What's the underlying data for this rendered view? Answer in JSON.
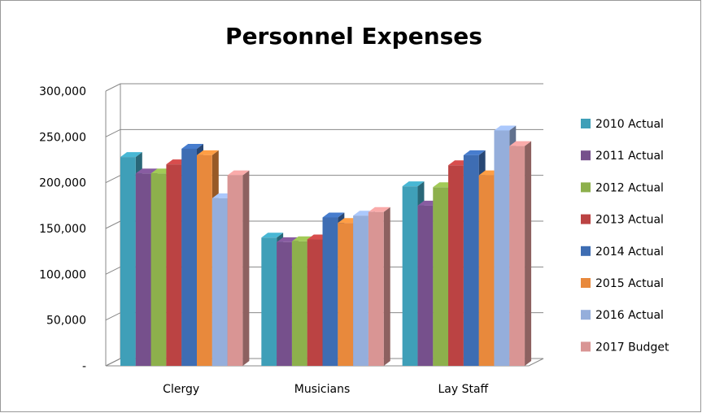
{
  "chart_data": {
    "type": "bar",
    "title": "Personnel Expenses",
    "categories": [
      "Clergy",
      "Musicians",
      "Lay Staff"
    ],
    "series": [
      {
        "name": "2010 Actual",
        "color": "#3f9fb8",
        "values": [
          228000,
          140000,
          196000
        ]
      },
      {
        "name": "2011 Actual",
        "color": "#76508c",
        "values": [
          210000,
          135000,
          175000
        ]
      },
      {
        "name": "2012 Actual",
        "color": "#8db04c",
        "values": [
          210000,
          136000,
          195000
        ]
      },
      {
        "name": "2013 Actual",
        "color": "#bb4343",
        "values": [
          220000,
          138000,
          219000
        ]
      },
      {
        "name": "2014 Actual",
        "color": "#3e6db3",
        "values": [
          237000,
          162000,
          230000
        ]
      },
      {
        "name": "2015 Actual",
        "color": "#e8893c",
        "values": [
          230000,
          156000,
          208000
        ]
      },
      {
        "name": "2016 Actual",
        "color": "#95aedb",
        "values": [
          183000,
          164000,
          257000
        ]
      },
      {
        "name": "2017 Budget",
        "color": "#d99594",
        "values": [
          208000,
          168000,
          240000
        ]
      }
    ],
    "ylim": [
      0,
      300000
    ],
    "yticks": [
      {
        "value": 0,
        "label": "-"
      },
      {
        "value": 50000,
        "label": "50,000"
      },
      {
        "value": 100000,
        "label": "100,000"
      },
      {
        "value": 150000,
        "label": "150,000"
      },
      {
        "value": 200000,
        "label": "200,000"
      },
      {
        "value": 250000,
        "label": "250,000"
      },
      {
        "value": 300000,
        "label": "300,000"
      }
    ],
    "grid": true,
    "legend": "right"
  }
}
